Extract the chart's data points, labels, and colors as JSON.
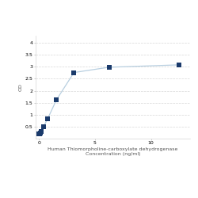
{
  "x": [
    0.0,
    0.049,
    0.098,
    0.195,
    0.39,
    0.781,
    1.563,
    3.125,
    6.25,
    12.5
  ],
  "y": [
    0.198,
    0.212,
    0.232,
    0.282,
    0.489,
    0.836,
    1.622,
    2.76,
    2.98,
    3.08
  ],
  "line_color": "#b8cfe0",
  "marker_color": "#1a3a6b",
  "marker_size": 4,
  "marker_style": "s",
  "xlabel_line1": "Human Thiomorpholine-carboxylate dehydrogenase",
  "xlabel_line2": "Concentration (ng/ml)",
  "ylabel": "OD",
  "xlim": [
    -0.3,
    13.5
  ],
  "ylim": [
    0,
    4.3
  ],
  "yticks": [
    0.5,
    1.0,
    1.5,
    2.0,
    2.5,
    3.0,
    3.5,
    4.0
  ],
  "ytick_labels": [
    "0.5",
    "1",
    "1.5",
    "2",
    "2.5",
    "3",
    "3.5",
    "4"
  ],
  "xticks": [
    0,
    5,
    10
  ],
  "xtick_labels": [
    "0",
    "5",
    "10"
  ],
  "grid_color": "#d8d8d8",
  "bg_color": "#ffffff",
  "label_fontsize": 4.5,
  "tick_fontsize": 4.5
}
